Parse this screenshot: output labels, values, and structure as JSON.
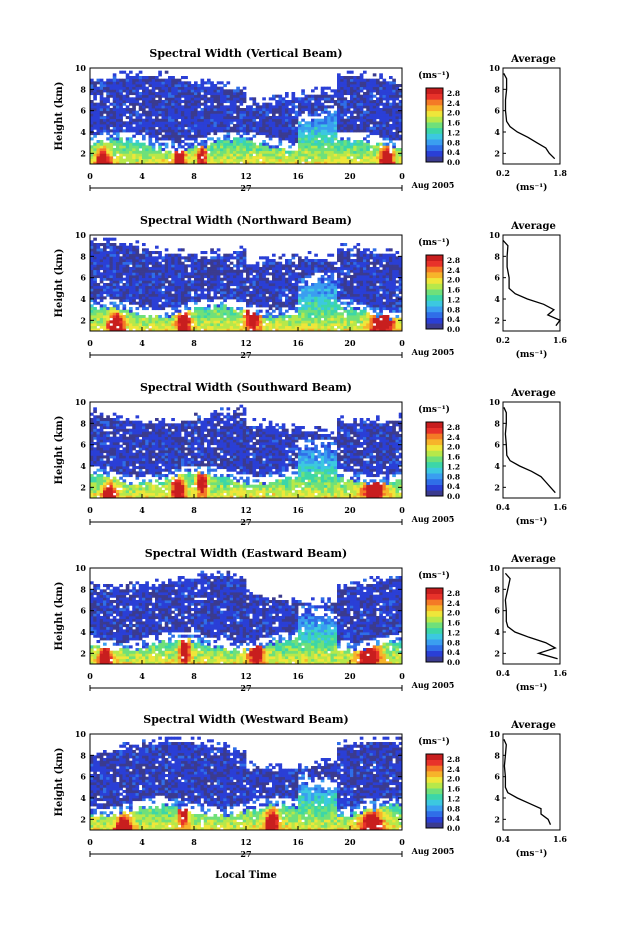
{
  "colors": {
    "scale": [
      "#3b3b8f",
      "#2a3fd6",
      "#2f6ee8",
      "#3a9ef0",
      "#3cc8e0",
      "#3cd6a8",
      "#6fe07a",
      "#b7e84a",
      "#efe63a",
      "#f7b42a",
      "#f47a26",
      "#e8322a",
      "#c81e1e"
    ],
    "missing": "#ffffff"
  },
  "common": {
    "ylabel": "Height (km)",
    "cbar_unit": "(ms⁻¹)",
    "avg_title": "Average",
    "avg_xlabel": "(ms⁻¹)",
    "date_label": "Aug 2005",
    "day_label": "27",
    "xlabel": "Local Time",
    "x_ticks": [
      "0",
      "4",
      "8",
      "12",
      "16",
      "20",
      "0"
    ],
    "y_ticks": [
      "2",
      "4",
      "6",
      "8",
      "10"
    ],
    "cbar_ticks": [
      "0.0",
      "0.4",
      "0.8",
      "1.2",
      "1.6",
      "2.0",
      "2.4",
      "2.8"
    ]
  },
  "chart_data": [
    {
      "type": "heatmap",
      "title": "Spectral Width (Vertical Beam)",
      "x": "local time (h)",
      "xlim": [
        0,
        24
      ],
      "ylim": [
        1,
        10
      ],
      "clim": [
        0.0,
        3.0
      ],
      "avg_profile": {
        "xlim": [
          0.2,
          1.8
        ],
        "xtick_labels": [
          "0.2",
          "1.8"
        ],
        "height_km": [
          1.5,
          2.0,
          2.5,
          3.0,
          3.5,
          4.0,
          4.5,
          5.0,
          6.0,
          7.0,
          8.0,
          9.0,
          9.5
        ],
        "width": [
          1.65,
          1.5,
          1.4,
          1.15,
          0.9,
          0.6,
          0.4,
          0.3,
          0.27,
          0.27,
          0.3,
          0.3,
          0.22
        ]
      }
    },
    {
      "type": "heatmap",
      "title": "Spectral Width (Northward Beam)",
      "x": "local time (h)",
      "xlim": [
        0,
        24
      ],
      "ylim": [
        1,
        10
      ],
      "clim": [
        0.0,
        3.0
      ],
      "avg_profile": {
        "xlim": [
          0.2,
          1.6
        ],
        "xtick_labels": [
          "0.2",
          "1.6"
        ],
        "height_km": [
          1.5,
          2.0,
          2.5,
          3.0,
          3.5,
          4.0,
          4.5,
          5.0,
          6.0,
          7.0,
          8.0,
          9.0,
          9.5
        ],
        "width": [
          1.5,
          1.6,
          1.3,
          1.45,
          1.2,
          0.8,
          0.5,
          0.35,
          0.35,
          0.3,
          0.3,
          0.32,
          0.2
        ]
      }
    },
    {
      "type": "heatmap",
      "title": "Spectral Width (Southward Beam)",
      "x": "local time (h)",
      "xlim": [
        0,
        24
      ],
      "ylim": [
        1,
        10
      ],
      "clim": [
        0.0,
        3.0
      ],
      "avg_profile": {
        "xlim": [
          0.4,
          1.6
        ],
        "xtick_labels": [
          "0.4",
          "1.6"
        ],
        "height_km": [
          1.5,
          2.0,
          2.5,
          3.0,
          3.5,
          4.0,
          4.5,
          5.0,
          6.0,
          7.0,
          8.0,
          9.0,
          9.5
        ],
        "width": [
          1.5,
          1.4,
          1.3,
          1.2,
          1.0,
          0.75,
          0.55,
          0.48,
          0.47,
          0.45,
          0.47,
          0.47,
          0.42
        ]
      }
    },
    {
      "type": "heatmap",
      "title": "Spectral Width (Eastward Beam)",
      "x": "local time (h)",
      "xlim": [
        0,
        24
      ],
      "ylim": [
        1,
        10
      ],
      "clim": [
        0.0,
        3.0
      ],
      "avg_profile": {
        "xlim": [
          0.4,
          1.6
        ],
        "xtick_labels": [
          "0.4",
          "1.6"
        ],
        "height_km": [
          1.5,
          2.0,
          2.5,
          3.0,
          3.5,
          4.0,
          4.5,
          5.0,
          6.0,
          7.0,
          8.0,
          9.0,
          9.5
        ],
        "width": [
          1.55,
          1.15,
          1.5,
          1.3,
          0.95,
          0.65,
          0.5,
          0.47,
          0.47,
          0.45,
          0.5,
          0.55,
          0.45
        ]
      }
    },
    {
      "type": "heatmap",
      "title": "Spectral Width (Westward Beam)",
      "x": "local time (h)",
      "xlim": [
        0,
        24
      ],
      "ylim": [
        1,
        10
      ],
      "clim": [
        0.0,
        3.0
      ],
      "avg_profile": {
        "xlim": [
          0.4,
          1.6
        ],
        "xtick_labels": [
          "0.4",
          "1.6"
        ],
        "height_km": [
          1.5,
          2.0,
          2.5,
          3.0,
          3.5,
          4.0,
          4.5,
          5.0,
          6.0,
          7.0,
          8.0,
          9.0,
          9.5
        ],
        "width": [
          1.4,
          1.35,
          1.2,
          1.2,
          0.95,
          0.7,
          0.5,
          0.45,
          0.45,
          0.43,
          0.45,
          0.47,
          0.42
        ]
      }
    }
  ]
}
